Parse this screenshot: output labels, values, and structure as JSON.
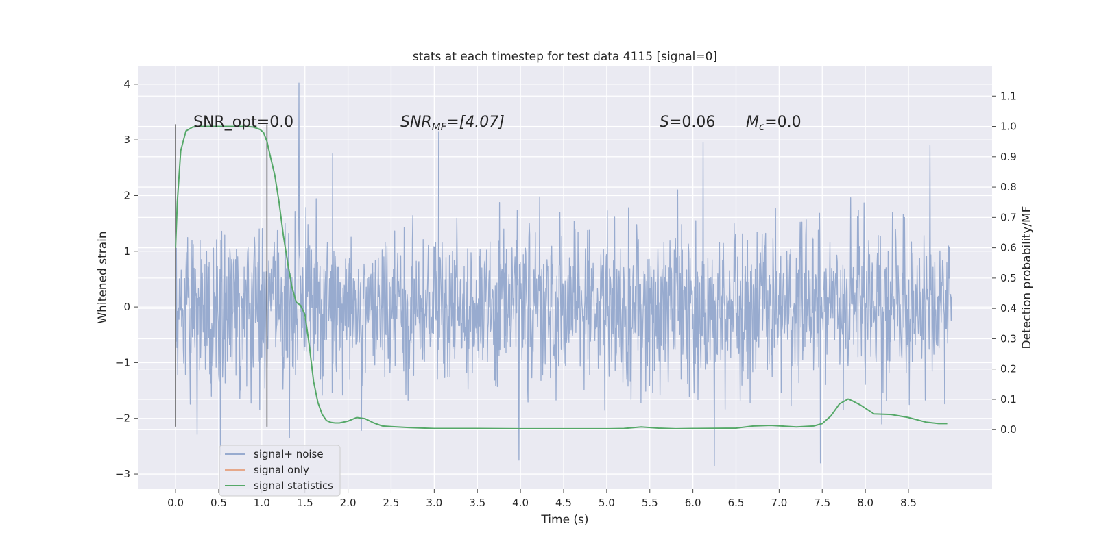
{
  "chart_data": {
    "type": "line",
    "title": "stats at each timestep for test data 4115 [signal=0]",
    "xlabel": "Time (s)",
    "ylabel": "Whitened strain",
    "y2label": "Detection probability/MF",
    "xlim": [
      -0.43,
      9.47
    ],
    "ylim": [
      -3.27,
      4.33
    ],
    "y2lim": [
      -0.196,
      1.2
    ],
    "xticks": [
      "0.0",
      "0.5",
      "1.0",
      "1.5",
      "2.0",
      "2.5",
      "3.0",
      "3.5",
      "4.0",
      "4.5",
      "5.0",
      "5.5",
      "6.0",
      "6.5",
      "7.0",
      "7.5",
      "8.0",
      "8.5"
    ],
    "yticks": [
      "4",
      "3",
      "2",
      "1",
      "0",
      "−1",
      "−2",
      "−3"
    ],
    "y2ticks": [
      "1.1",
      "1.0",
      "0.9",
      "0.8",
      "0.7",
      "0.6",
      "0.5",
      "0.4",
      "0.3",
      "0.2",
      "0.1",
      "0.0"
    ],
    "annotations": {
      "snr_opt": "SNR_opt=0.0",
      "snr_mf_base": "SNR",
      "snr_mf_sub": "MF",
      "snr_mf_value": "=[4.07]",
      "s_var": "S",
      "s_value": "=0.06",
      "mc_var": "M",
      "mc_sub": "c",
      "mc_value": "=0.0"
    },
    "markers": {
      "lines_x": [
        0.0,
        1.06
      ],
      "y_range": [
        -2.15,
        3.28
      ]
    },
    "series": [
      {
        "name": "signal+ noise",
        "color": "#98abcf",
        "axis": "left",
        "x_range": [
          0.0,
          9.0
        ],
        "n_samples": 1800,
        "sigma": 0.72,
        "spikes": [
          [
            1.43,
            4.02
          ],
          [
            3.05,
            3.15
          ],
          [
            1.82,
            2.75
          ],
          [
            8.75,
            2.9
          ],
          [
            3.98,
            -2.75
          ],
          [
            6.25,
            -2.85
          ],
          [
            7.48,
            -2.8
          ],
          [
            0.52,
            -2.65
          ]
        ]
      },
      {
        "name": "signal only",
        "color": "#e6a88a",
        "axis": "left",
        "values": []
      },
      {
        "name": "signal statistics",
        "color": "#55a868",
        "axis": "right",
        "x": [
          0.0,
          0.02,
          0.06,
          0.12,
          0.2,
          0.3,
          0.5,
          0.8,
          0.9,
          0.98,
          1.02,
          1.06,
          1.1,
          1.15,
          1.2,
          1.25,
          1.3,
          1.35,
          1.38,
          1.4,
          1.45,
          1.5,
          1.55,
          1.6,
          1.65,
          1.7,
          1.75,
          1.8,
          1.85,
          1.9,
          2.0,
          2.1,
          2.2,
          2.3,
          2.4,
          2.5,
          2.7,
          3.0,
          3.5,
          4.0,
          4.5,
          5.0,
          5.2,
          5.4,
          5.6,
          5.8,
          6.0,
          6.5,
          6.7,
          6.9,
          7.2,
          7.4,
          7.5,
          7.6,
          7.7,
          7.8,
          7.85,
          7.95,
          8.1,
          8.3,
          8.5,
          8.7,
          8.85,
          8.95
        ],
        "values": [
          0.6,
          0.75,
          0.92,
          0.985,
          0.998,
          1.0,
          1.0,
          1.0,
          0.998,
          0.99,
          0.98,
          0.95,
          0.9,
          0.84,
          0.75,
          0.64,
          0.55,
          0.47,
          0.44,
          0.42,
          0.41,
          0.38,
          0.28,
          0.16,
          0.09,
          0.05,
          0.03,
          0.024,
          0.022,
          0.022,
          0.028,
          0.04,
          0.036,
          0.022,
          0.012,
          0.01,
          0.007,
          0.004,
          0.004,
          0.003,
          0.003,
          0.003,
          0.004,
          0.009,
          0.005,
          0.003,
          0.004,
          0.005,
          0.012,
          0.014,
          0.009,
          0.012,
          0.02,
          0.045,
          0.085,
          0.101,
          0.095,
          0.08,
          0.052,
          0.05,
          0.04,
          0.025,
          0.02,
          0.02
        ]
      }
    ]
  }
}
